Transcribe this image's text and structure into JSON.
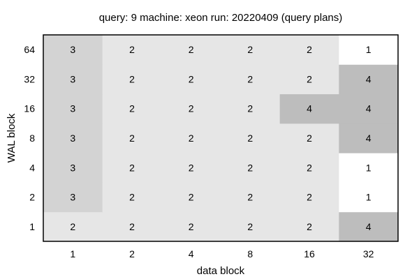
{
  "chart_data": {
    "type": "heatmap",
    "title": "query: 9  machine: xeon  run: 20220409  (query plans)",
    "xlabel": "data block",
    "ylabel": "WAL block",
    "x_categories": [
      "1",
      "2",
      "4",
      "8",
      "16",
      "32"
    ],
    "y_categories": [
      "1",
      "2",
      "4",
      "8",
      "16",
      "32",
      "64"
    ],
    "values": [
      [
        2,
        2,
        2,
        2,
        2,
        4
      ],
      [
        3,
        2,
        2,
        2,
        2,
        1
      ],
      [
        3,
        2,
        2,
        2,
        2,
        1
      ],
      [
        3,
        2,
        2,
        2,
        2,
        4
      ],
      [
        3,
        2,
        2,
        2,
        4,
        4
      ],
      [
        3,
        2,
        2,
        2,
        2,
        4
      ],
      [
        3,
        2,
        2,
        2,
        2,
        1
      ]
    ],
    "colors": {
      "1": "#ffffff",
      "2": "#e6e6e6",
      "3": "#d3d3d3",
      "4": "#bdbdbd"
    },
    "legend": "none",
    "grid": false
  }
}
